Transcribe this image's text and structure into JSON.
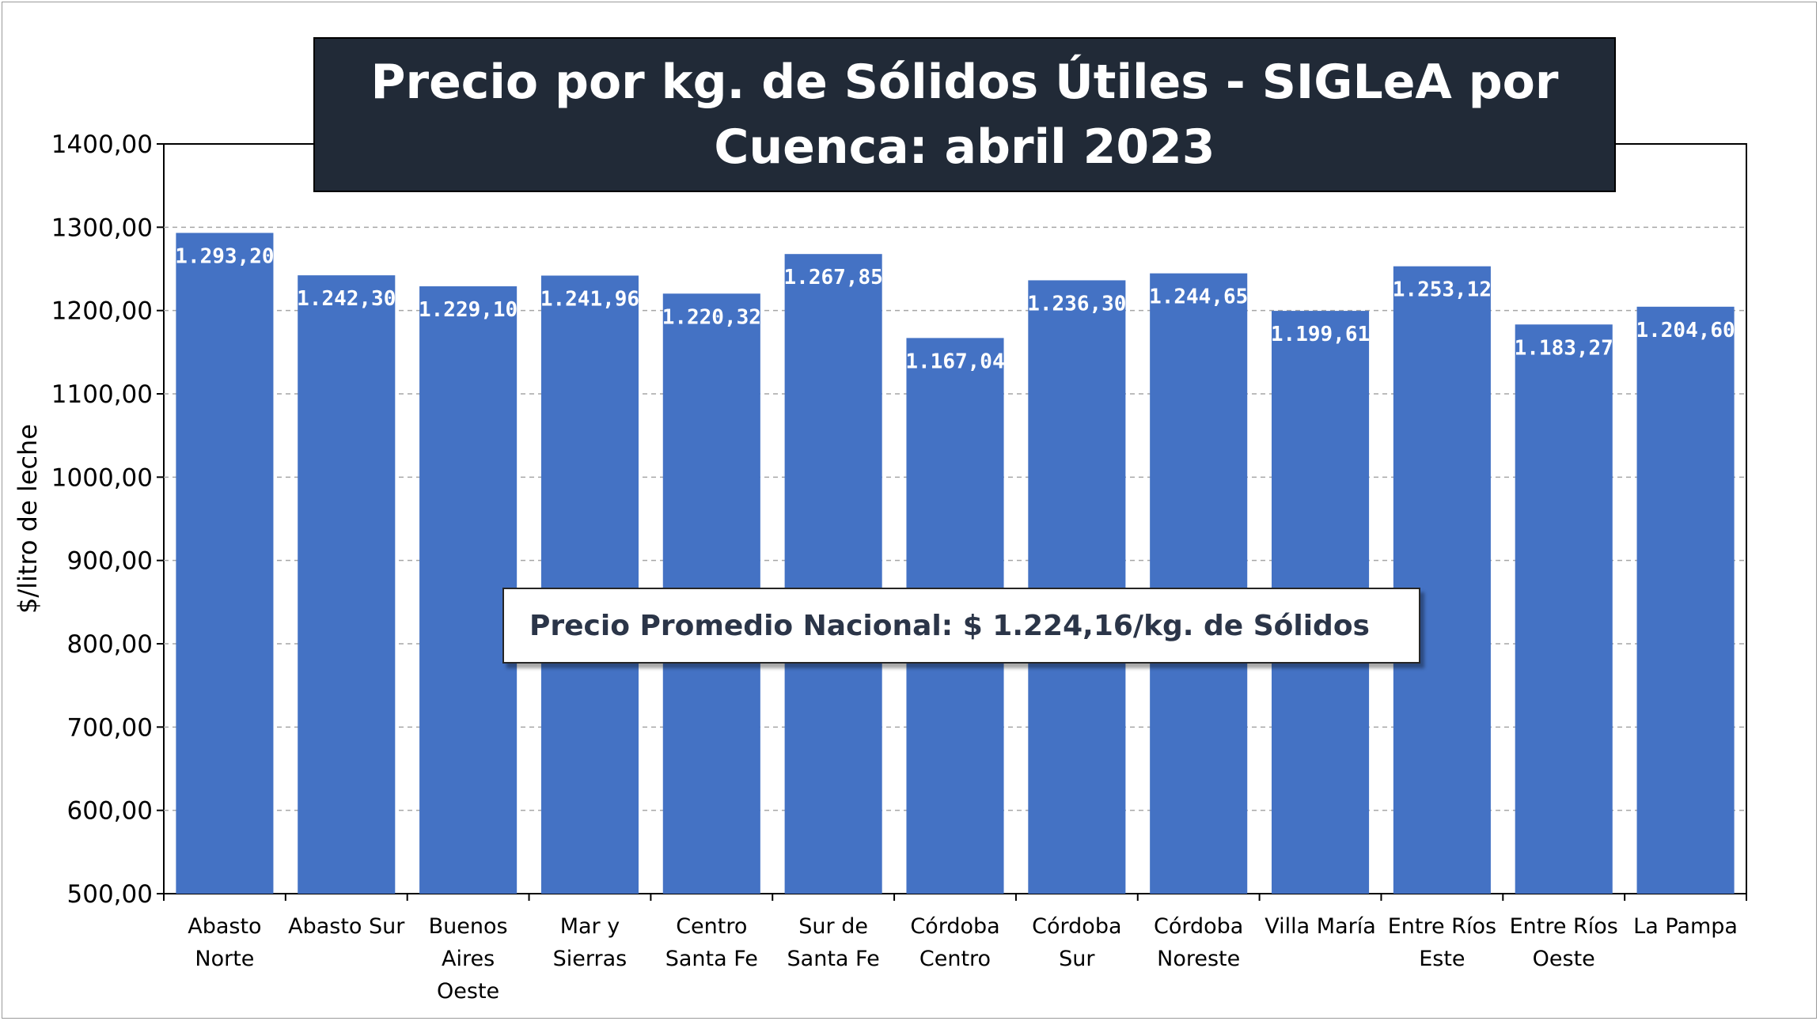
{
  "colors": {
    "bar": "#4472c4",
    "title_bg": "#212a37",
    "title_text": "#ffffff",
    "gridline": "#a6a6a6",
    "annotation_text": "#2b3548"
  },
  "chart_data": {
    "type": "bar",
    "title": "Precio por kg. de Sólidos Útiles - SIGLeA por Cuenca: abril 2023",
    "xlabel": "",
    "ylabel": "$/litro de leche",
    "ylim": [
      500,
      1400
    ],
    "ytick_values": [
      500,
      600,
      700,
      800,
      900,
      1000,
      1100,
      1200,
      1300,
      1400
    ],
    "ytick_labels": [
      "500,00",
      "600,00",
      "700,00",
      "800,00",
      "900,00",
      "1000,00",
      "1100,00",
      "1200,00",
      "1300,00",
      "1400,00"
    ],
    "grid": "horizontal dashed",
    "legend": "none",
    "categories": [
      [
        "Abasto",
        "Norte"
      ],
      [
        "Abasto Sur"
      ],
      [
        "Buenos",
        "Aires",
        "Oeste"
      ],
      [
        "Mar y",
        "Sierras"
      ],
      [
        "Centro",
        "Santa Fe"
      ],
      [
        "Sur de",
        "Santa Fe"
      ],
      [
        "Córdoba",
        "Centro"
      ],
      [
        "Córdoba",
        "Sur"
      ],
      [
        "Córdoba",
        "Noreste"
      ],
      [
        "Villa María"
      ],
      [
        "Entre Ríos",
        "Este"
      ],
      [
        "Entre Ríos",
        "Oeste"
      ],
      [
        "La Pampa"
      ]
    ],
    "values": [
      1293.2,
      1242.3,
      1229.1,
      1241.96,
      1220.32,
      1267.85,
      1167.04,
      1236.3,
      1244.65,
      1199.61,
      1253.12,
      1183.27,
      1204.6
    ],
    "data_labels": [
      "1.293,20",
      "1.242,30",
      "1.229,10",
      "1.241,96",
      "1.220,32",
      "1.267,85",
      "1.167,04",
      "1.236,30",
      "1.244,65",
      "1.199,61",
      "1.253,12",
      "1.183,27",
      "1.204,60"
    ],
    "annotation": "Precio Promedio Nacional: $ 1.224,16/kg. de Sólidos"
  }
}
